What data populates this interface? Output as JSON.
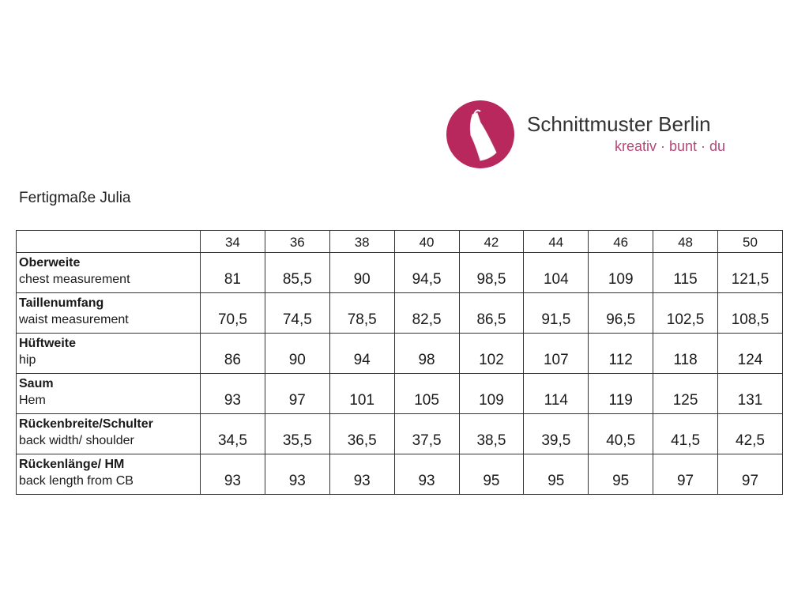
{
  "logo": {
    "name": "Schnittmuster Berlin",
    "tagline": "kreativ · bunt · du"
  },
  "title": "Fertigmaße Julia",
  "table": {
    "sizes": [
      "34",
      "36",
      "38",
      "40",
      "42",
      "44",
      "46",
      "48",
      "50"
    ],
    "rows": [
      {
        "label": "Oberweite",
        "sublabel": "chest measurement",
        "values": [
          "81",
          "85,5",
          "90",
          "94,5",
          "98,5",
          "104",
          "109",
          "115",
          "121,5"
        ]
      },
      {
        "label": "Taillenumfang",
        "sublabel": "waist measurement",
        "values": [
          "70,5",
          "74,5",
          "78,5",
          "82,5",
          "86,5",
          "91,5",
          "96,5",
          "102,5",
          "108,5"
        ]
      },
      {
        "label": "Hüftweite",
        "sublabel": "hip",
        "values": [
          "86",
          "90",
          "94",
          "98",
          "102",
          "107",
          "112",
          "118",
          "124"
        ]
      },
      {
        "label": "Saum",
        "sublabel": "Hem",
        "values": [
          "93",
          "97",
          "101",
          "105",
          "109",
          "114",
          "119",
          "125",
          "131"
        ]
      },
      {
        "label": "Rückenbreite/Schulter",
        "sublabel": "back width/ shoulder",
        "values": [
          "34,5",
          "35,5",
          "36,5",
          "37,5",
          "38,5",
          "39,5",
          "40,5",
          "41,5",
          "42,5"
        ]
      },
      {
        "label": "Rückenlänge/ HM",
        "sublabel": "back length from CB",
        "values": [
          "93",
          "93",
          "93",
          "93",
          "95",
          "95",
          "95",
          "97",
          "97"
        ]
      }
    ]
  }
}
